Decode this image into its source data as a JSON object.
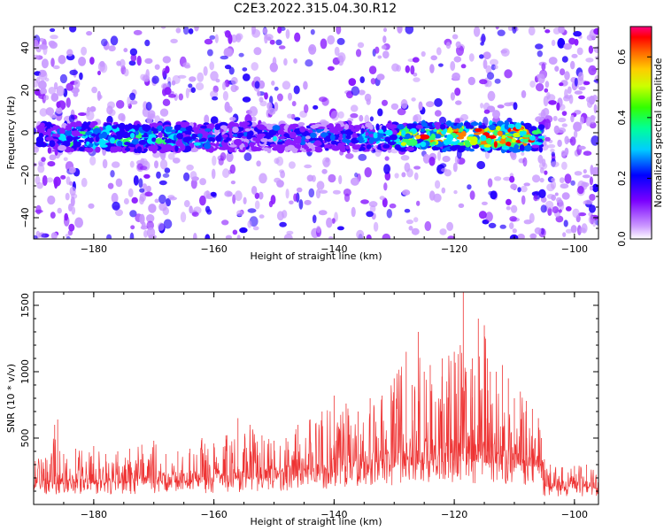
{
  "figure": {
    "title": "C2E3.2022.315.04.30.R12"
  },
  "chart_data": [
    {
      "type": "heatmap",
      "title": "C2E3.2022.315.04.30.R12",
      "xlabel": "Height of straight line (km)",
      "ylabel": "Frequency (Hz)",
      "xlim": [
        -190,
        -96
      ],
      "ylim": [
        -50,
        50
      ],
      "x_ticks": [
        -180,
        -160,
        -140,
        -120,
        -100
      ],
      "y_ticks": [
        -40,
        -20,
        0,
        20,
        40
      ],
      "colorbar": {
        "label": "Normalized spectral amplitude",
        "range": [
          0,
          0.7
        ],
        "ticks": [
          0.0,
          0.2,
          0.4,
          0.6
        ],
        "colormap": [
          "#ffffff",
          "#cc99ff",
          "#7a00ff",
          "#0000ff",
          "#00ffff",
          "#00ff00",
          "#ffff00",
          "#ff8000",
          "#ff0000",
          "#ff0080"
        ]
      },
      "description_values": {
        "signal_band_center_hz": -2,
        "signal_band_width_hz": 8,
        "peak_location_km": -125,
        "peak_amplitude": 0.7
      }
    },
    {
      "type": "line",
      "xlabel": "Height of straight line (km)",
      "ylabel": "SNR (10 * v/v)",
      "xlim": [
        -190,
        -96
      ],
      "ylim": [
        0,
        1600
      ],
      "x_ticks": [
        -180,
        -160,
        -140,
        -120,
        -100
      ],
      "y_ticks": [
        500,
        1000,
        1500
      ],
      "series": [
        {
          "color": "#ee3333",
          "envelope": {
            "x": [
              -190,
              -188,
              -186.5,
              -186,
              -185,
              -183,
              -180,
              -178,
              -176,
              -174,
              -172,
              -170,
              -168,
              -166,
              -164,
              -162,
              -160,
              -158,
              -156,
              -154,
              -152,
              -150,
              -148,
              -146,
              -144,
              -142,
              -140,
              -138,
              -136,
              -134,
              -132,
              -130,
              -128,
              -127,
              -126,
              -125,
              -124,
              -122,
              -120,
              -119,
              -118.5,
              -118,
              -117,
              -116,
              -115,
              -114.5,
              -114,
              -113,
              -112,
              -111,
              -110,
              -109,
              -108,
              -107,
              -106,
              -105.5,
              -105,
              -104,
              -102,
              -100,
              -98,
              -96
            ],
            "y": [
              400,
              350,
              600,
              640,
              380,
              420,
              440,
              380,
              400,
              420,
              450,
              480,
              380,
              400,
              420,
              500,
              460,
              520,
              650,
              600,
              520,
              480,
              500,
              600,
              640,
              700,
              820,
              760,
              700,
              800,
              820,
              950,
              1150,
              900,
              1300,
              1000,
              1050,
              1100,
              1150,
              1200,
              1620,
              1000,
              1100,
              1400,
              1350,
              1100,
              1000,
              1000,
              1050,
              950,
              800,
              850,
              780,
              720,
              650,
              500,
              340,
              300,
              280,
              290,
              300,
              250
            ]
          },
          "baseline": {
            "x": [
              -190,
              -170,
              -160,
              -150,
              -140,
              -130,
              -120,
              -110,
              -106,
              -105,
              -96
            ],
            "y": [
              150,
              160,
              170,
              200,
              240,
              280,
              330,
              300,
              280,
              120,
              120
            ]
          }
        }
      ]
    }
  ]
}
